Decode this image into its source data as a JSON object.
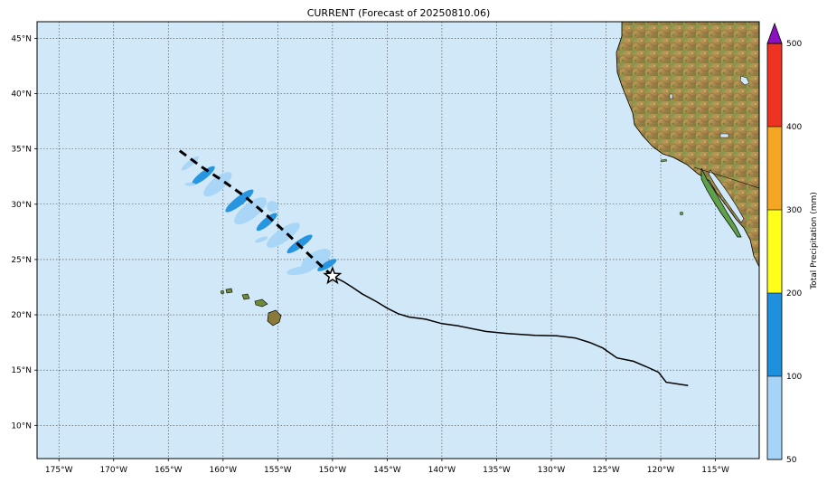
{
  "title": "CURRENT (Forecast of 20250810.06)",
  "map": {
    "lon_range": [
      -177,
      -111
    ],
    "lat_range": [
      7,
      46.5
    ],
    "ocean_color": "#d0e8f7",
    "grid": true,
    "lon_ticks": [
      -175,
      -170,
      -165,
      -160,
      -155,
      -150,
      -145,
      -140,
      -135,
      -130,
      -125,
      -120,
      -115
    ],
    "lon_tick_labels": [
      "175°W",
      "170°W",
      "165°W",
      "160°W",
      "155°W",
      "150°W",
      "145°W",
      "140°W",
      "135°W",
      "130°W",
      "125°W",
      "120°W",
      "115°W"
    ],
    "lat_ticks": [
      10,
      15,
      20,
      25,
      30,
      35,
      40,
      45
    ],
    "lat_tick_labels": [
      "10°N",
      "15°N",
      "20°N",
      "25°N",
      "30°N",
      "35°N",
      "40°N",
      "45°N"
    ]
  },
  "storm": {
    "current_position": {
      "lon": -150.0,
      "lat": 23.5
    },
    "past_track": [
      {
        "lon": -117.5,
        "lat": 13.6
      },
      {
        "lon": -119.5,
        "lat": 13.9
      },
      {
        "lon": -120.2,
        "lat": 14.8
      },
      {
        "lon": -121.3,
        "lat": 15.3
      },
      {
        "lon": -122.5,
        "lat": 15.8
      },
      {
        "lon": -124.0,
        "lat": 16.1
      },
      {
        "lon": -125.3,
        "lat": 17.0
      },
      {
        "lon": -126.5,
        "lat": 17.5
      },
      {
        "lon": -127.8,
        "lat": 17.9
      },
      {
        "lon": -129.5,
        "lat": 18.1
      },
      {
        "lon": -131.5,
        "lat": 18.15
      },
      {
        "lon": -134.0,
        "lat": 18.3
      },
      {
        "lon": -136.0,
        "lat": 18.5
      },
      {
        "lon": -138.5,
        "lat": 19.0
      },
      {
        "lon": -140.0,
        "lat": 19.2
      },
      {
        "lon": -141.5,
        "lat": 19.6
      },
      {
        "lon": -143.0,
        "lat": 19.8
      },
      {
        "lon": -144.0,
        "lat": 20.1
      },
      {
        "lon": -145.0,
        "lat": 20.6
      },
      {
        "lon": -146.0,
        "lat": 21.2
      },
      {
        "lon": -147.3,
        "lat": 21.9
      },
      {
        "lon": -148.2,
        "lat": 22.5
      },
      {
        "lon": -149.0,
        "lat": 23.0
      },
      {
        "lon": -150.0,
        "lat": 23.5
      }
    ],
    "forecast_track": [
      {
        "lon": -150.0,
        "lat": 23.5
      },
      {
        "lon": -152.0,
        "lat": 25.3
      },
      {
        "lon": -154.0,
        "lat": 27.2
      },
      {
        "lon": -156.0,
        "lat": 29.0
      },
      {
        "lon": -158.0,
        "lat": 30.7
      },
      {
        "lon": -160.0,
        "lat": 32.1
      },
      {
        "lon": -162.0,
        "lat": 33.4
      },
      {
        "lon": -164.2,
        "lat": 35.0
      }
    ]
  },
  "precip_swaths": [
    {
      "lon": -161.8,
      "lat": 32.6,
      "rx": 1.3,
      "ry": 0.35,
      "rot": 38,
      "cat": 1
    },
    {
      "lon": -158.5,
      "lat": 30.3,
      "rx": 1.6,
      "ry": 0.4,
      "rot": 38,
      "cat": 1
    },
    {
      "lon": -156.0,
      "lat": 28.4,
      "rx": 1.2,
      "ry": 0.35,
      "rot": 40,
      "cat": 1
    },
    {
      "lon": -153.0,
      "lat": 26.4,
      "rx": 1.4,
      "ry": 0.35,
      "rot": 35,
      "cat": 1
    },
    {
      "lon": -150.5,
      "lat": 24.5,
      "rx": 1.0,
      "ry": 0.3,
      "rot": 30,
      "cat": 1
    },
    {
      "lon": -163.0,
      "lat": 33.7,
      "rx": 1.0,
      "ry": 0.25,
      "rot": 38,
      "cat": 0
    },
    {
      "lon": -160.5,
      "lat": 31.8,
      "rx": 1.6,
      "ry": 0.6,
      "rot": 40,
      "cat": 0
    },
    {
      "lon": -157.5,
      "lat": 29.4,
      "rx": 1.8,
      "ry": 0.7,
      "rot": 38,
      "cat": 0
    },
    {
      "lon": -154.5,
      "lat": 27.2,
      "rx": 1.8,
      "ry": 0.6,
      "rot": 35,
      "cat": 0
    },
    {
      "lon": -151.5,
      "lat": 25.0,
      "rx": 1.5,
      "ry": 0.7,
      "rot": 30,
      "cat": 0
    },
    {
      "lon": -153.0,
      "lat": 24.0,
      "rx": 1.2,
      "ry": 0.35,
      "rot": 10,
      "cat": 0
    },
    {
      "lon": -156.5,
      "lat": 26.8,
      "rx": 0.6,
      "ry": 0.2,
      "rot": 20,
      "cat": 0
    },
    {
      "lon": -155.5,
      "lat": 29.8,
      "rx": 0.5,
      "ry": 0.5,
      "rot": 0,
      "cat": 0
    },
    {
      "lon": -163.0,
      "lat": 31.8,
      "rx": 0.5,
      "ry": 0.15,
      "rot": 0,
      "cat": 0
    }
  ],
  "colorbar": {
    "label": "Total Precipitation (mm)",
    "levels": [
      50,
      100,
      200,
      300,
      400,
      500
    ],
    "tick_labels": [
      "50",
      "100",
      "200",
      "300",
      "400",
      "500"
    ],
    "colors": [
      "#a6d4f7",
      "#1e90de",
      "#ffff1a",
      "#f5a623",
      "#ee3322"
    ],
    "extend_color": "#8b10c0"
  }
}
